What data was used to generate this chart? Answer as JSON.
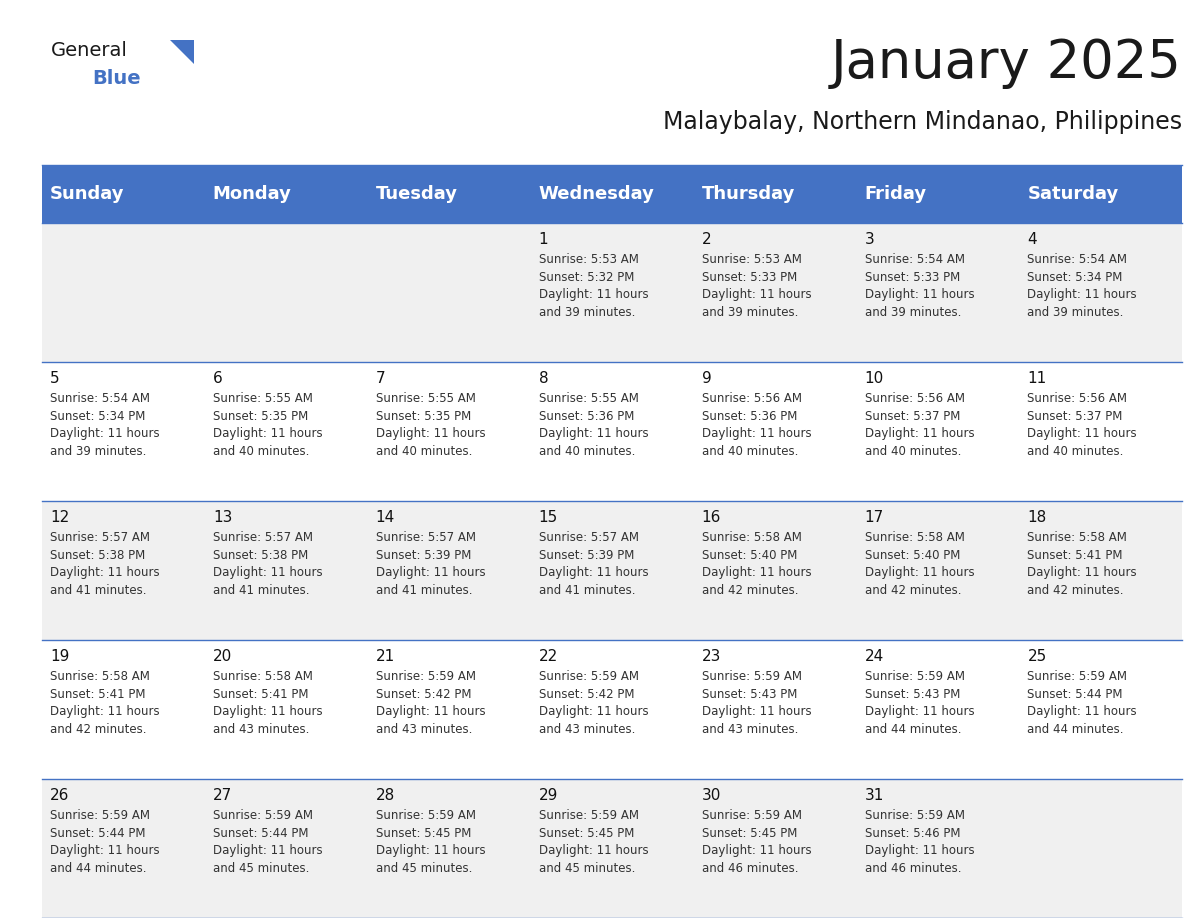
{
  "title": "January 2025",
  "subtitle": "Malaybalay, Northern Mindanao, Philippines",
  "header_bg_color": "#4472C4",
  "header_text_color": "#FFFFFF",
  "cell_bg_even": "#F0F0F0",
  "cell_bg_odd": "#FFFFFF",
  "grid_line_color": "#4472C4",
  "day_names": [
    "Sunday",
    "Monday",
    "Tuesday",
    "Wednesday",
    "Thursday",
    "Friday",
    "Saturday"
  ],
  "title_fontsize": 38,
  "subtitle_fontsize": 17,
  "header_fontsize": 13,
  "cell_day_fontsize": 11,
  "cell_text_fontsize": 8.5,
  "logo_general_fontsize": 14,
  "logo_blue_fontsize": 14,
  "fig_width": 11.88,
  "fig_height": 9.18,
  "dpi": 100,
  "days": [
    {
      "date": 1,
      "col": 3,
      "row": 0,
      "sunrise": "5:53 AM",
      "sunset": "5:32 PM",
      "daylight_hours": 11,
      "daylight_minutes": 39
    },
    {
      "date": 2,
      "col": 4,
      "row": 0,
      "sunrise": "5:53 AM",
      "sunset": "5:33 PM",
      "daylight_hours": 11,
      "daylight_minutes": 39
    },
    {
      "date": 3,
      "col": 5,
      "row": 0,
      "sunrise": "5:54 AM",
      "sunset": "5:33 PM",
      "daylight_hours": 11,
      "daylight_minutes": 39
    },
    {
      "date": 4,
      "col": 6,
      "row": 0,
      "sunrise": "5:54 AM",
      "sunset": "5:34 PM",
      "daylight_hours": 11,
      "daylight_minutes": 39
    },
    {
      "date": 5,
      "col": 0,
      "row": 1,
      "sunrise": "5:54 AM",
      "sunset": "5:34 PM",
      "daylight_hours": 11,
      "daylight_minutes": 39
    },
    {
      "date": 6,
      "col": 1,
      "row": 1,
      "sunrise": "5:55 AM",
      "sunset": "5:35 PM",
      "daylight_hours": 11,
      "daylight_minutes": 40
    },
    {
      "date": 7,
      "col": 2,
      "row": 1,
      "sunrise": "5:55 AM",
      "sunset": "5:35 PM",
      "daylight_hours": 11,
      "daylight_minutes": 40
    },
    {
      "date": 8,
      "col": 3,
      "row": 1,
      "sunrise": "5:55 AM",
      "sunset": "5:36 PM",
      "daylight_hours": 11,
      "daylight_minutes": 40
    },
    {
      "date": 9,
      "col": 4,
      "row": 1,
      "sunrise": "5:56 AM",
      "sunset": "5:36 PM",
      "daylight_hours": 11,
      "daylight_minutes": 40
    },
    {
      "date": 10,
      "col": 5,
      "row": 1,
      "sunrise": "5:56 AM",
      "sunset": "5:37 PM",
      "daylight_hours": 11,
      "daylight_minutes": 40
    },
    {
      "date": 11,
      "col": 6,
      "row": 1,
      "sunrise": "5:56 AM",
      "sunset": "5:37 PM",
      "daylight_hours": 11,
      "daylight_minutes": 40
    },
    {
      "date": 12,
      "col": 0,
      "row": 2,
      "sunrise": "5:57 AM",
      "sunset": "5:38 PM",
      "daylight_hours": 11,
      "daylight_minutes": 41
    },
    {
      "date": 13,
      "col": 1,
      "row": 2,
      "sunrise": "5:57 AM",
      "sunset": "5:38 PM",
      "daylight_hours": 11,
      "daylight_minutes": 41
    },
    {
      "date": 14,
      "col": 2,
      "row": 2,
      "sunrise": "5:57 AM",
      "sunset": "5:39 PM",
      "daylight_hours": 11,
      "daylight_minutes": 41
    },
    {
      "date": 15,
      "col": 3,
      "row": 2,
      "sunrise": "5:57 AM",
      "sunset": "5:39 PM",
      "daylight_hours": 11,
      "daylight_minutes": 41
    },
    {
      "date": 16,
      "col": 4,
      "row": 2,
      "sunrise": "5:58 AM",
      "sunset": "5:40 PM",
      "daylight_hours": 11,
      "daylight_minutes": 42
    },
    {
      "date": 17,
      "col": 5,
      "row": 2,
      "sunrise": "5:58 AM",
      "sunset": "5:40 PM",
      "daylight_hours": 11,
      "daylight_minutes": 42
    },
    {
      "date": 18,
      "col": 6,
      "row": 2,
      "sunrise": "5:58 AM",
      "sunset": "5:41 PM",
      "daylight_hours": 11,
      "daylight_minutes": 42
    },
    {
      "date": 19,
      "col": 0,
      "row": 3,
      "sunrise": "5:58 AM",
      "sunset": "5:41 PM",
      "daylight_hours": 11,
      "daylight_minutes": 42
    },
    {
      "date": 20,
      "col": 1,
      "row": 3,
      "sunrise": "5:58 AM",
      "sunset": "5:41 PM",
      "daylight_hours": 11,
      "daylight_minutes": 43
    },
    {
      "date": 21,
      "col": 2,
      "row": 3,
      "sunrise": "5:59 AM",
      "sunset": "5:42 PM",
      "daylight_hours": 11,
      "daylight_minutes": 43
    },
    {
      "date": 22,
      "col": 3,
      "row": 3,
      "sunrise": "5:59 AM",
      "sunset": "5:42 PM",
      "daylight_hours": 11,
      "daylight_minutes": 43
    },
    {
      "date": 23,
      "col": 4,
      "row": 3,
      "sunrise": "5:59 AM",
      "sunset": "5:43 PM",
      "daylight_hours": 11,
      "daylight_minutes": 43
    },
    {
      "date": 24,
      "col": 5,
      "row": 3,
      "sunrise": "5:59 AM",
      "sunset": "5:43 PM",
      "daylight_hours": 11,
      "daylight_minutes": 44
    },
    {
      "date": 25,
      "col": 6,
      "row": 3,
      "sunrise": "5:59 AM",
      "sunset": "5:44 PM",
      "daylight_hours": 11,
      "daylight_minutes": 44
    },
    {
      "date": 26,
      "col": 0,
      "row": 4,
      "sunrise": "5:59 AM",
      "sunset": "5:44 PM",
      "daylight_hours": 11,
      "daylight_minutes": 44
    },
    {
      "date": 27,
      "col": 1,
      "row": 4,
      "sunrise": "5:59 AM",
      "sunset": "5:44 PM",
      "daylight_hours": 11,
      "daylight_minutes": 45
    },
    {
      "date": 28,
      "col": 2,
      "row": 4,
      "sunrise": "5:59 AM",
      "sunset": "5:45 PM",
      "daylight_hours": 11,
      "daylight_minutes": 45
    },
    {
      "date": 29,
      "col": 3,
      "row": 4,
      "sunrise": "5:59 AM",
      "sunset": "5:45 PM",
      "daylight_hours": 11,
      "daylight_minutes": 45
    },
    {
      "date": 30,
      "col": 4,
      "row": 4,
      "sunrise": "5:59 AM",
      "sunset": "5:45 PM",
      "daylight_hours": 11,
      "daylight_minutes": 46
    },
    {
      "date": 31,
      "col": 5,
      "row": 4,
      "sunrise": "5:59 AM",
      "sunset": "5:46 PM",
      "daylight_hours": 11,
      "daylight_minutes": 46
    }
  ]
}
